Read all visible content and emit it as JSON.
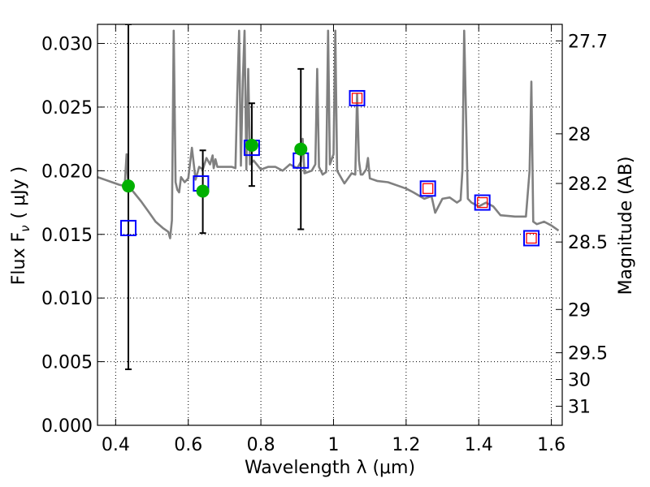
{
  "colors": {
    "spectrum": "#808080",
    "model_marker": "#0000ff",
    "inner_marker": "#ff0000",
    "observed_marker": "#00b000",
    "error_bar": "#000000",
    "grid": "#000000"
  },
  "chart_data": {
    "type": "scatter",
    "title": "",
    "xlabel": "Wavelength  λ (μm)",
    "ylabel": "Flux  F",
    "ylabel_subscript": "ν",
    "ylabel_unit": "( μJy )",
    "y2label": "Magnitude (AB)",
    "xlim": [
      0.35,
      1.63
    ],
    "ylim": [
      0.0,
      0.0315
    ],
    "grid": true,
    "x_ticks": [
      0.4,
      0.6,
      0.8,
      1.0,
      1.2,
      1.4,
      1.6
    ],
    "x_tick_labels": [
      "0.4",
      "0.6",
      "0.8",
      "1",
      "1.2",
      "1.4",
      "1.6"
    ],
    "y_ticks": [
      0.0,
      0.005,
      0.01,
      0.015,
      0.02,
      0.025,
      0.03
    ],
    "y_tick_labels": [
      "0.000",
      "0.005",
      "0.010",
      "0.015",
      "0.020",
      "0.025",
      "0.030"
    ],
    "y2_ticks": [
      {
        "label": "27.7",
        "flux": 0.0302
      },
      {
        "label": "28",
        "flux": 0.0229
      },
      {
        "label": "28.2",
        "flux": 0.019
      },
      {
        "label": "28.5",
        "flux": 0.0144
      },
      {
        "label": "29",
        "flux": 0.0091
      },
      {
        "label": "29.5",
        "flux": 0.0057
      },
      {
        "label": "30",
        "flux": 0.0036
      },
      {
        "label": "31",
        "flux": 0.0015
      }
    ],
    "series": [
      {
        "kind": "spectrum",
        "x": [
          0.35,
          0.37,
          0.39,
          0.41,
          0.425,
          0.43,
          0.435,
          0.45,
          0.47,
          0.49,
          0.51,
          0.53,
          0.545,
          0.55,
          0.555,
          0.56,
          0.565,
          0.57,
          0.575,
          0.58,
          0.59,
          0.6,
          0.6,
          0.61,
          0.62,
          0.63,
          0.64,
          0.65,
          0.66,
          0.667,
          0.67,
          0.675,
          0.68,
          0.7,
          0.72,
          0.73,
          0.735,
          0.74,
          0.745,
          0.75,
          0.755,
          0.76,
          0.765,
          0.77,
          0.78,
          0.8,
          0.82,
          0.84,
          0.86,
          0.88,
          0.9,
          0.91,
          0.915,
          0.92,
          0.94,
          0.95,
          0.955,
          0.96,
          0.97,
          0.98,
          0.985,
          0.99,
          1.0,
          1.005,
          1.01,
          1.03,
          1.05,
          1.06,
          1.065,
          1.07,
          1.075,
          1.08,
          1.09,
          1.095,
          1.1,
          1.12,
          1.15,
          1.18,
          1.2,
          1.22,
          1.25,
          1.27,
          1.28,
          1.3,
          1.32,
          1.34,
          1.35,
          1.355,
          1.36,
          1.37,
          1.38,
          1.4,
          1.42,
          1.44,
          1.46,
          1.5,
          1.53,
          1.54,
          1.545,
          1.55,
          1.56,
          1.58,
          1.6,
          1.62
        ],
        "y": [
          0.0195,
          0.0193,
          0.0191,
          0.0189,
          0.0188,
          0.0213,
          0.0188,
          0.0183,
          0.0176,
          0.0168,
          0.016,
          0.0155,
          0.0152,
          0.0147,
          0.0161,
          0.031,
          0.0191,
          0.0185,
          0.0183,
          0.0195,
          0.0191,
          0.0194,
          0.0194,
          0.0218,
          0.0193,
          0.0203,
          0.0201,
          0.021,
          0.0205,
          0.0212,
          0.0202,
          0.0209,
          0.0203,
          0.0203,
          0.0203,
          0.0202,
          0.026,
          0.031,
          0.0204,
          0.027,
          0.031,
          0.0201,
          0.028,
          0.0205,
          0.0208,
          0.0201,
          0.0203,
          0.0203,
          0.02,
          0.0205,
          0.0202,
          0.0207,
          0.0225,
          0.0198,
          0.02,
          0.0205,
          0.028,
          0.0203,
          0.0197,
          0.0199,
          0.031,
          0.0205,
          0.0213,
          0.031,
          0.02,
          0.019,
          0.0198,
          0.0197,
          0.026,
          0.0208,
          0.0197,
          0.0197,
          0.0201,
          0.021,
          0.0194,
          0.0192,
          0.0191,
          0.0188,
          0.0186,
          0.0183,
          0.0178,
          0.018,
          0.0167,
          0.0178,
          0.0179,
          0.0175,
          0.0177,
          0.02,
          0.031,
          0.0178,
          0.0175,
          0.0172,
          0.0175,
          0.0172,
          0.0165,
          0.0164,
          0.0164,
          0.02,
          0.027,
          0.016,
          0.0158,
          0.016,
          0.0157,
          0.0153
        ]
      },
      {
        "kind": "model_photometry",
        "marker": "open-square",
        "x": [
          0.435,
          0.635,
          0.775,
          0.91,
          1.065,
          1.26,
          1.41,
          1.545
        ],
        "y": [
          0.0155,
          0.019,
          0.0218,
          0.0208,
          0.0257,
          0.0186,
          0.0175,
          0.0147
        ]
      },
      {
        "kind": "model_photometry_inner",
        "marker": "open-square",
        "x": [
          1.065,
          1.26,
          1.41,
          1.545
        ],
        "y": [
          0.0257,
          0.0186,
          0.0175,
          0.0147
        ]
      },
      {
        "kind": "observed",
        "marker": "filled-circle",
        "x": [
          0.435,
          0.64,
          0.775,
          0.91
        ],
        "y": [
          0.0188,
          0.0184,
          0.022,
          0.0217
        ],
        "err_low": [
          0.0044,
          0.0151,
          0.0188,
          0.0154
        ],
        "err_high": [
          0.0315,
          0.0216,
          0.0253,
          0.028
        ]
      }
    ]
  }
}
